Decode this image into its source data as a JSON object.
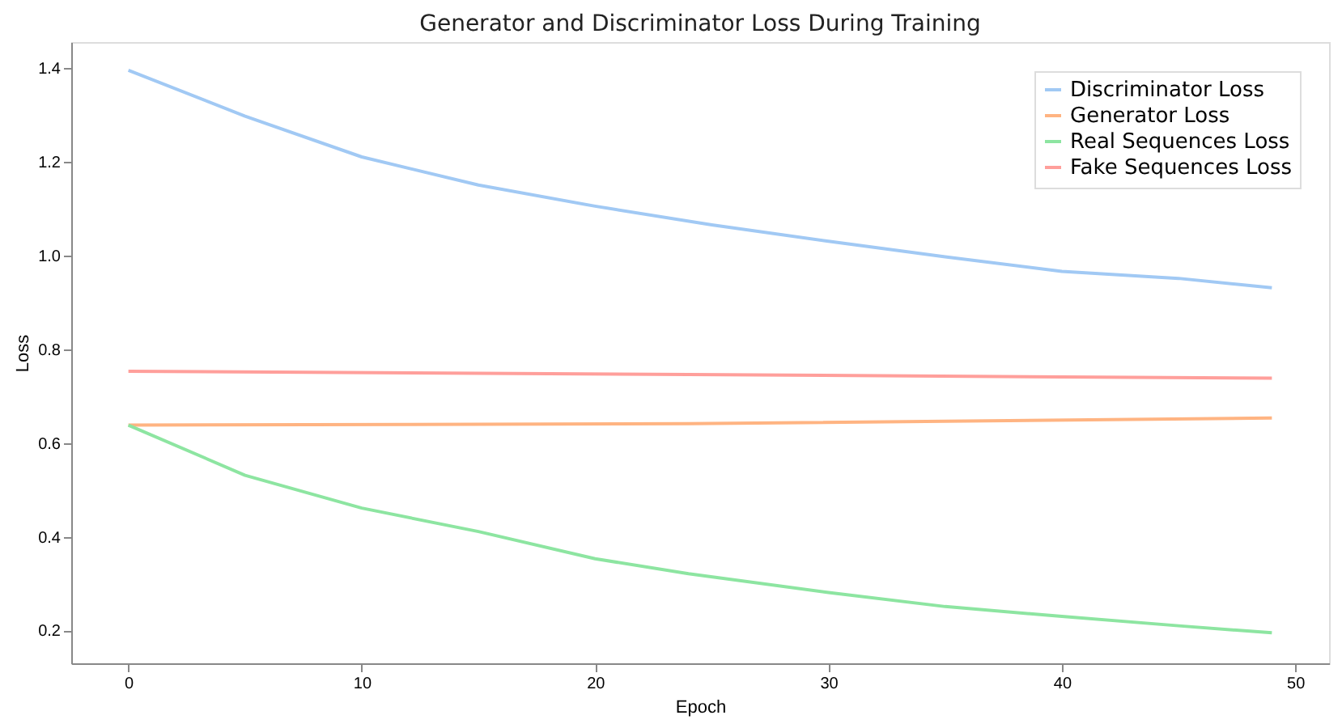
{
  "chart_data": {
    "type": "line",
    "title": "Generator and Discriminator Loss During Training",
    "xlabel": "Epoch",
    "ylabel": "Loss",
    "xlim": [
      -2.45,
      51.45
    ],
    "ylim": [
      0.13,
      1.455
    ],
    "xticks": [
      0,
      10,
      20,
      30,
      40,
      50
    ],
    "yticks": [
      0.2,
      0.4,
      0.6,
      0.8,
      {
        "value": 1.0,
        "label": "1.0"
      },
      1.2,
      1.4
    ],
    "grid": false,
    "legend": "top right",
    "marker": "none",
    "line_style": "solid",
    "series": [
      {
        "name": "Discriminator Loss",
        "color": "#a1c9f4",
        "x": [
          0,
          5,
          10,
          15,
          20,
          25,
          30,
          35,
          40,
          45,
          49
        ],
        "values": [
          1.395,
          1.297,
          1.21,
          1.15,
          1.105,
          1.065,
          1.03,
          0.997,
          0.966,
          0.951,
          0.931
        ]
      },
      {
        "name": "Generator Loss",
        "color": "#ffb482",
        "x": [
          0,
          24,
          49
        ],
        "values": [
          0.638,
          0.641,
          0.653
        ]
      },
      {
        "name": "Real Sequences Loss",
        "color": "#8de5a1",
        "x": [
          0,
          5,
          10,
          15,
          20,
          24,
          30,
          35,
          40,
          45,
          49
        ],
        "values": [
          0.638,
          0.531,
          0.461,
          0.411,
          0.353,
          0.321,
          0.281,
          0.251,
          0.23,
          0.21,
          0.195
        ]
      },
      {
        "name": "Fake Sequences Loss",
        "color": "#ff9f9b",
        "x": [
          0,
          24,
          49
        ],
        "values": [
          0.753,
          0.746,
          0.738
        ]
      }
    ]
  }
}
